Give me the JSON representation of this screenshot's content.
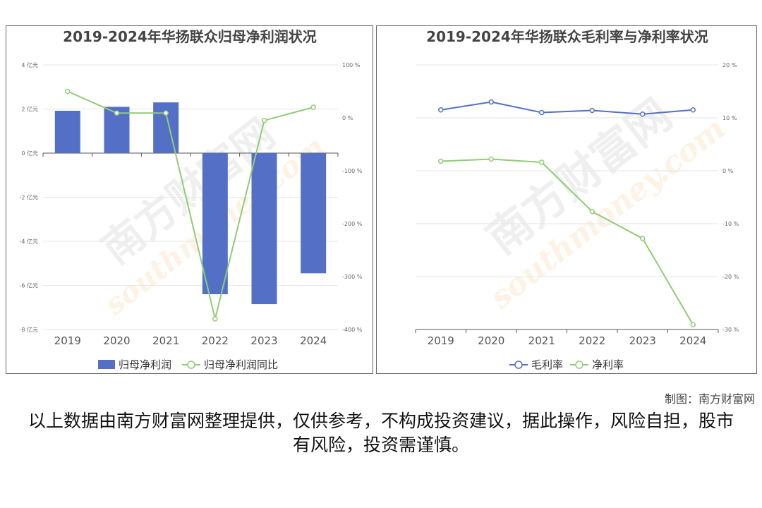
{
  "chart_data": [
    {
      "type": "bar",
      "title": "2019-2024年华扬联众归母净利润状况",
      "categories": [
        "2019",
        "2020",
        "2021",
        "2022",
        "2023",
        "2024"
      ],
      "series": [
        {
          "name": "归母净利润",
          "type": "bar",
          "axis": "left",
          "color": "#5470c6",
          "values": [
            1.92,
            2.1,
            2.3,
            -6.4,
            -6.85,
            -5.45
          ]
        },
        {
          "name": "归母净利润同比",
          "type": "line",
          "axis": "right",
          "color": "#91cc75",
          "values": [
            50,
            9,
            9,
            -380,
            -5,
            20
          ]
        }
      ],
      "y_left": {
        "min": -8,
        "max": 4,
        "ticks": [
          4,
          2,
          0,
          -2,
          -4,
          -6,
          -8
        ],
        "unit": "亿元"
      },
      "y_right": {
        "min": -400,
        "max": 100,
        "ticks": [
          100,
          0,
          -100,
          -200,
          -300,
          -400
        ],
        "unit": "%"
      },
      "legend_position": "bottom",
      "grid": true
    },
    {
      "type": "line",
      "title": "2019-2024年华扬联众毛利率与净利率状况",
      "categories": [
        "2019",
        "2020",
        "2021",
        "2022",
        "2023",
        "2024"
      ],
      "series": [
        {
          "name": "毛利率",
          "color": "#5470c6",
          "values": [
            11.5,
            13,
            11,
            11.4,
            10.7,
            11.5
          ]
        },
        {
          "name": "净利率",
          "color": "#91cc75",
          "values": [
            1.8,
            2.2,
            1.6,
            -7.7,
            -12.8,
            -29.1
          ]
        }
      ],
      "y_right": {
        "min": -30,
        "max": 20,
        "ticks": [
          20,
          10,
          0,
          -10,
          -20,
          -30
        ],
        "unit": "%"
      },
      "legend_position": "bottom",
      "grid": true
    }
  ],
  "credit": "制图：南方财富网",
  "disclaimer": "以上数据由南方财富网整理提供，仅供参考，不构成投资建议，据此操作，风险自担，股市有风险，投资需谨慎。",
  "watermark": {
    "brand": "南方财富网",
    "site": "southmoney.com"
  }
}
